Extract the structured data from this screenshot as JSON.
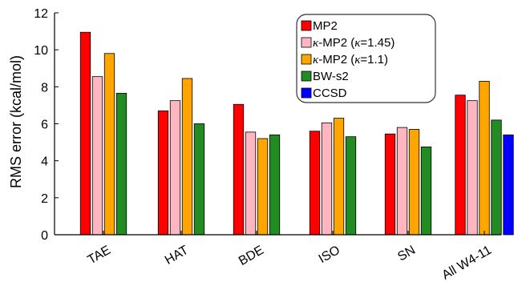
{
  "chart_data": {
    "type": "bar",
    "ylabel": "RMS error (kcal/mol)",
    "xlabel": "",
    "ylim": [
      0,
      12
    ],
    "yticks": [
      0,
      2,
      4,
      6,
      8,
      10,
      12
    ],
    "categories": [
      "TAE",
      "HAT",
      "BDE",
      "ISO",
      "SN",
      "All W4-11"
    ],
    "grid": false,
    "legend_position": "top-right",
    "series": [
      {
        "name": "MP2",
        "color": "#ff0000",
        "values": [
          10.95,
          6.7,
          7.05,
          5.6,
          5.45,
          7.55
        ]
      },
      {
        "name": "κ-MP2 (κ=1.45)",
        "color": "#ffb6c1",
        "values": [
          8.55,
          7.25,
          5.55,
          6.05,
          5.8,
          7.25
        ]
      },
      {
        "name": "κ-MP2 (κ=1.1)",
        "color": "#ffa500",
        "values": [
          9.8,
          8.45,
          5.2,
          6.3,
          5.7,
          8.3
        ]
      },
      {
        "name": "BW-s2",
        "color": "#228b22",
        "values": [
          7.65,
          6.0,
          5.4,
          5.3,
          4.75,
          6.2
        ]
      },
      {
        "name": "CCSD",
        "color": "#0000ff",
        "values": [
          null,
          null,
          null,
          null,
          null,
          5.4
        ]
      }
    ],
    "legend": [
      {
        "prefix": "MP2",
        "kappa_symbol": "",
        "suffix": "",
        "kappa_value": ""
      },
      {
        "prefix": "",
        "kappa_symbol": "κ",
        "suffix": "-MP2 (",
        "kappa_value": "=1.45)"
      },
      {
        "prefix": "",
        "kappa_symbol": "κ",
        "suffix": "-MP2 (",
        "kappa_value": "=1.1)"
      },
      {
        "prefix": "BW-s2",
        "kappa_symbol": "",
        "suffix": "",
        "kappa_value": ""
      },
      {
        "prefix": "CCSD",
        "kappa_symbol": "",
        "suffix": "",
        "kappa_value": ""
      }
    ]
  }
}
